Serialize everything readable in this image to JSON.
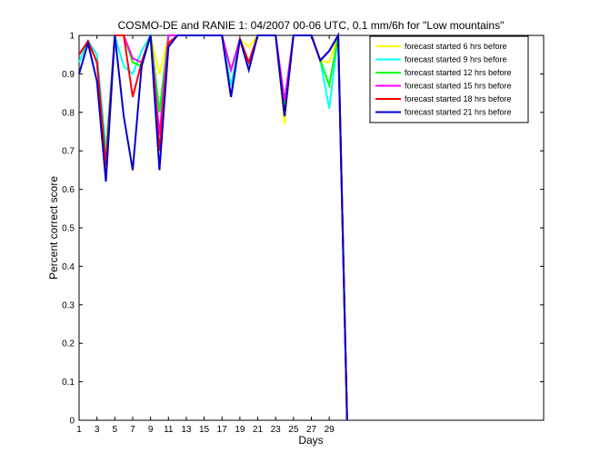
{
  "chart_data": {
    "type": "line",
    "title": "COSMO-DE and RANIE 1: 04/2007 00-06 UTC, 0.1 mm/6h for \"Low mountains\"",
    "xlabel": "Days",
    "ylabel": "Percent correct score",
    "xlim": [
      1,
      53
    ],
    "ylim": [
      0,
      1
    ],
    "xticks": [
      1,
      3,
      5,
      7,
      9,
      11,
      13,
      15,
      17,
      19,
      21,
      23,
      25,
      27,
      29
    ],
    "yticks": [
      0,
      0.1,
      0.2,
      0.3,
      0.4,
      0.5,
      0.6,
      0.7,
      0.8,
      0.9,
      1
    ],
    "grid": false,
    "legend_position": "top-right",
    "x": [
      1,
      2,
      3,
      4,
      5,
      6,
      7,
      8,
      9,
      10,
      11,
      12,
      13,
      14,
      15,
      16,
      17,
      18,
      19,
      20,
      21,
      22,
      23,
      24,
      25,
      26,
      27,
      28,
      29,
      30,
      31
    ],
    "series": [
      {
        "name": "forecast started 6 hrs before",
        "color": "#ffff00",
        "values": [
          0.93,
          0.985,
          0.95,
          0.7,
          1.0,
          0.92,
          0.9,
          0.96,
          1.0,
          0.9,
          1.0,
          1.0,
          1.0,
          1.0,
          1.0,
          1.0,
          1.0,
          0.87,
          0.99,
          0.97,
          1.0,
          1.0,
          1.0,
          0.77,
          1.0,
          1.0,
          1.0,
          0.935,
          0.93,
          1.0,
          0.0
        ]
      },
      {
        "name": "forecast started 9 hrs before",
        "color": "#00ffff",
        "values": [
          0.93,
          0.985,
          0.95,
          0.7,
          1.0,
          0.92,
          0.9,
          0.96,
          1.0,
          0.8,
          1.0,
          1.0,
          1.0,
          1.0,
          1.0,
          1.0,
          1.0,
          0.87,
          0.99,
          0.93,
          1.0,
          1.0,
          1.0,
          0.8,
          1.0,
          1.0,
          1.0,
          0.935,
          0.81,
          1.0,
          0.0
        ]
      },
      {
        "name": "forecast started 12 hrs before",
        "color": "#00ff00",
        "values": [
          0.95,
          0.985,
          0.93,
          0.68,
          1.0,
          1.0,
          0.93,
          0.92,
          1.0,
          0.8,
          1.0,
          1.0,
          1.0,
          1.0,
          1.0,
          1.0,
          1.0,
          0.91,
          0.99,
          0.93,
          1.0,
          1.0,
          1.0,
          0.82,
          1.0,
          1.0,
          1.0,
          0.935,
          0.87,
          1.0,
          0.0
        ]
      },
      {
        "name": "forecast started 15 hrs before",
        "color": "#ff00ff",
        "values": [
          0.95,
          0.985,
          0.93,
          0.66,
          1.0,
          1.0,
          0.94,
          0.93,
          1.0,
          0.74,
          1.0,
          1.0,
          1.0,
          1.0,
          1.0,
          1.0,
          1.0,
          0.91,
          0.99,
          0.93,
          1.0,
          1.0,
          1.0,
          0.83,
          1.0,
          1.0,
          1.0,
          0.935,
          0.96,
          1.0,
          0.0
        ]
      },
      {
        "name": "forecast started 18 hrs before",
        "color": "#ff0000",
        "values": [
          0.95,
          0.985,
          0.93,
          0.66,
          1.0,
          1.0,
          0.84,
          0.93,
          1.0,
          0.7,
          0.98,
          1.0,
          1.0,
          1.0,
          1.0,
          1.0,
          1.0,
          0.84,
          0.99,
          0.93,
          1.0,
          1.0,
          1.0,
          0.79,
          1.0,
          1.0,
          1.0,
          0.935,
          0.96,
          1.0,
          0.0
        ]
      },
      {
        "name": "forecast started 21 hrs before",
        "color": "#0000cd",
        "values": [
          0.9,
          0.98,
          0.88,
          0.62,
          1.0,
          0.79,
          0.65,
          0.92,
          1.0,
          0.65,
          0.97,
          1.0,
          1.0,
          1.0,
          1.0,
          1.0,
          1.0,
          0.84,
          0.99,
          0.91,
          1.0,
          1.0,
          1.0,
          0.79,
          1.0,
          1.0,
          1.0,
          0.935,
          0.96,
          1.0,
          0.0
        ]
      }
    ]
  }
}
